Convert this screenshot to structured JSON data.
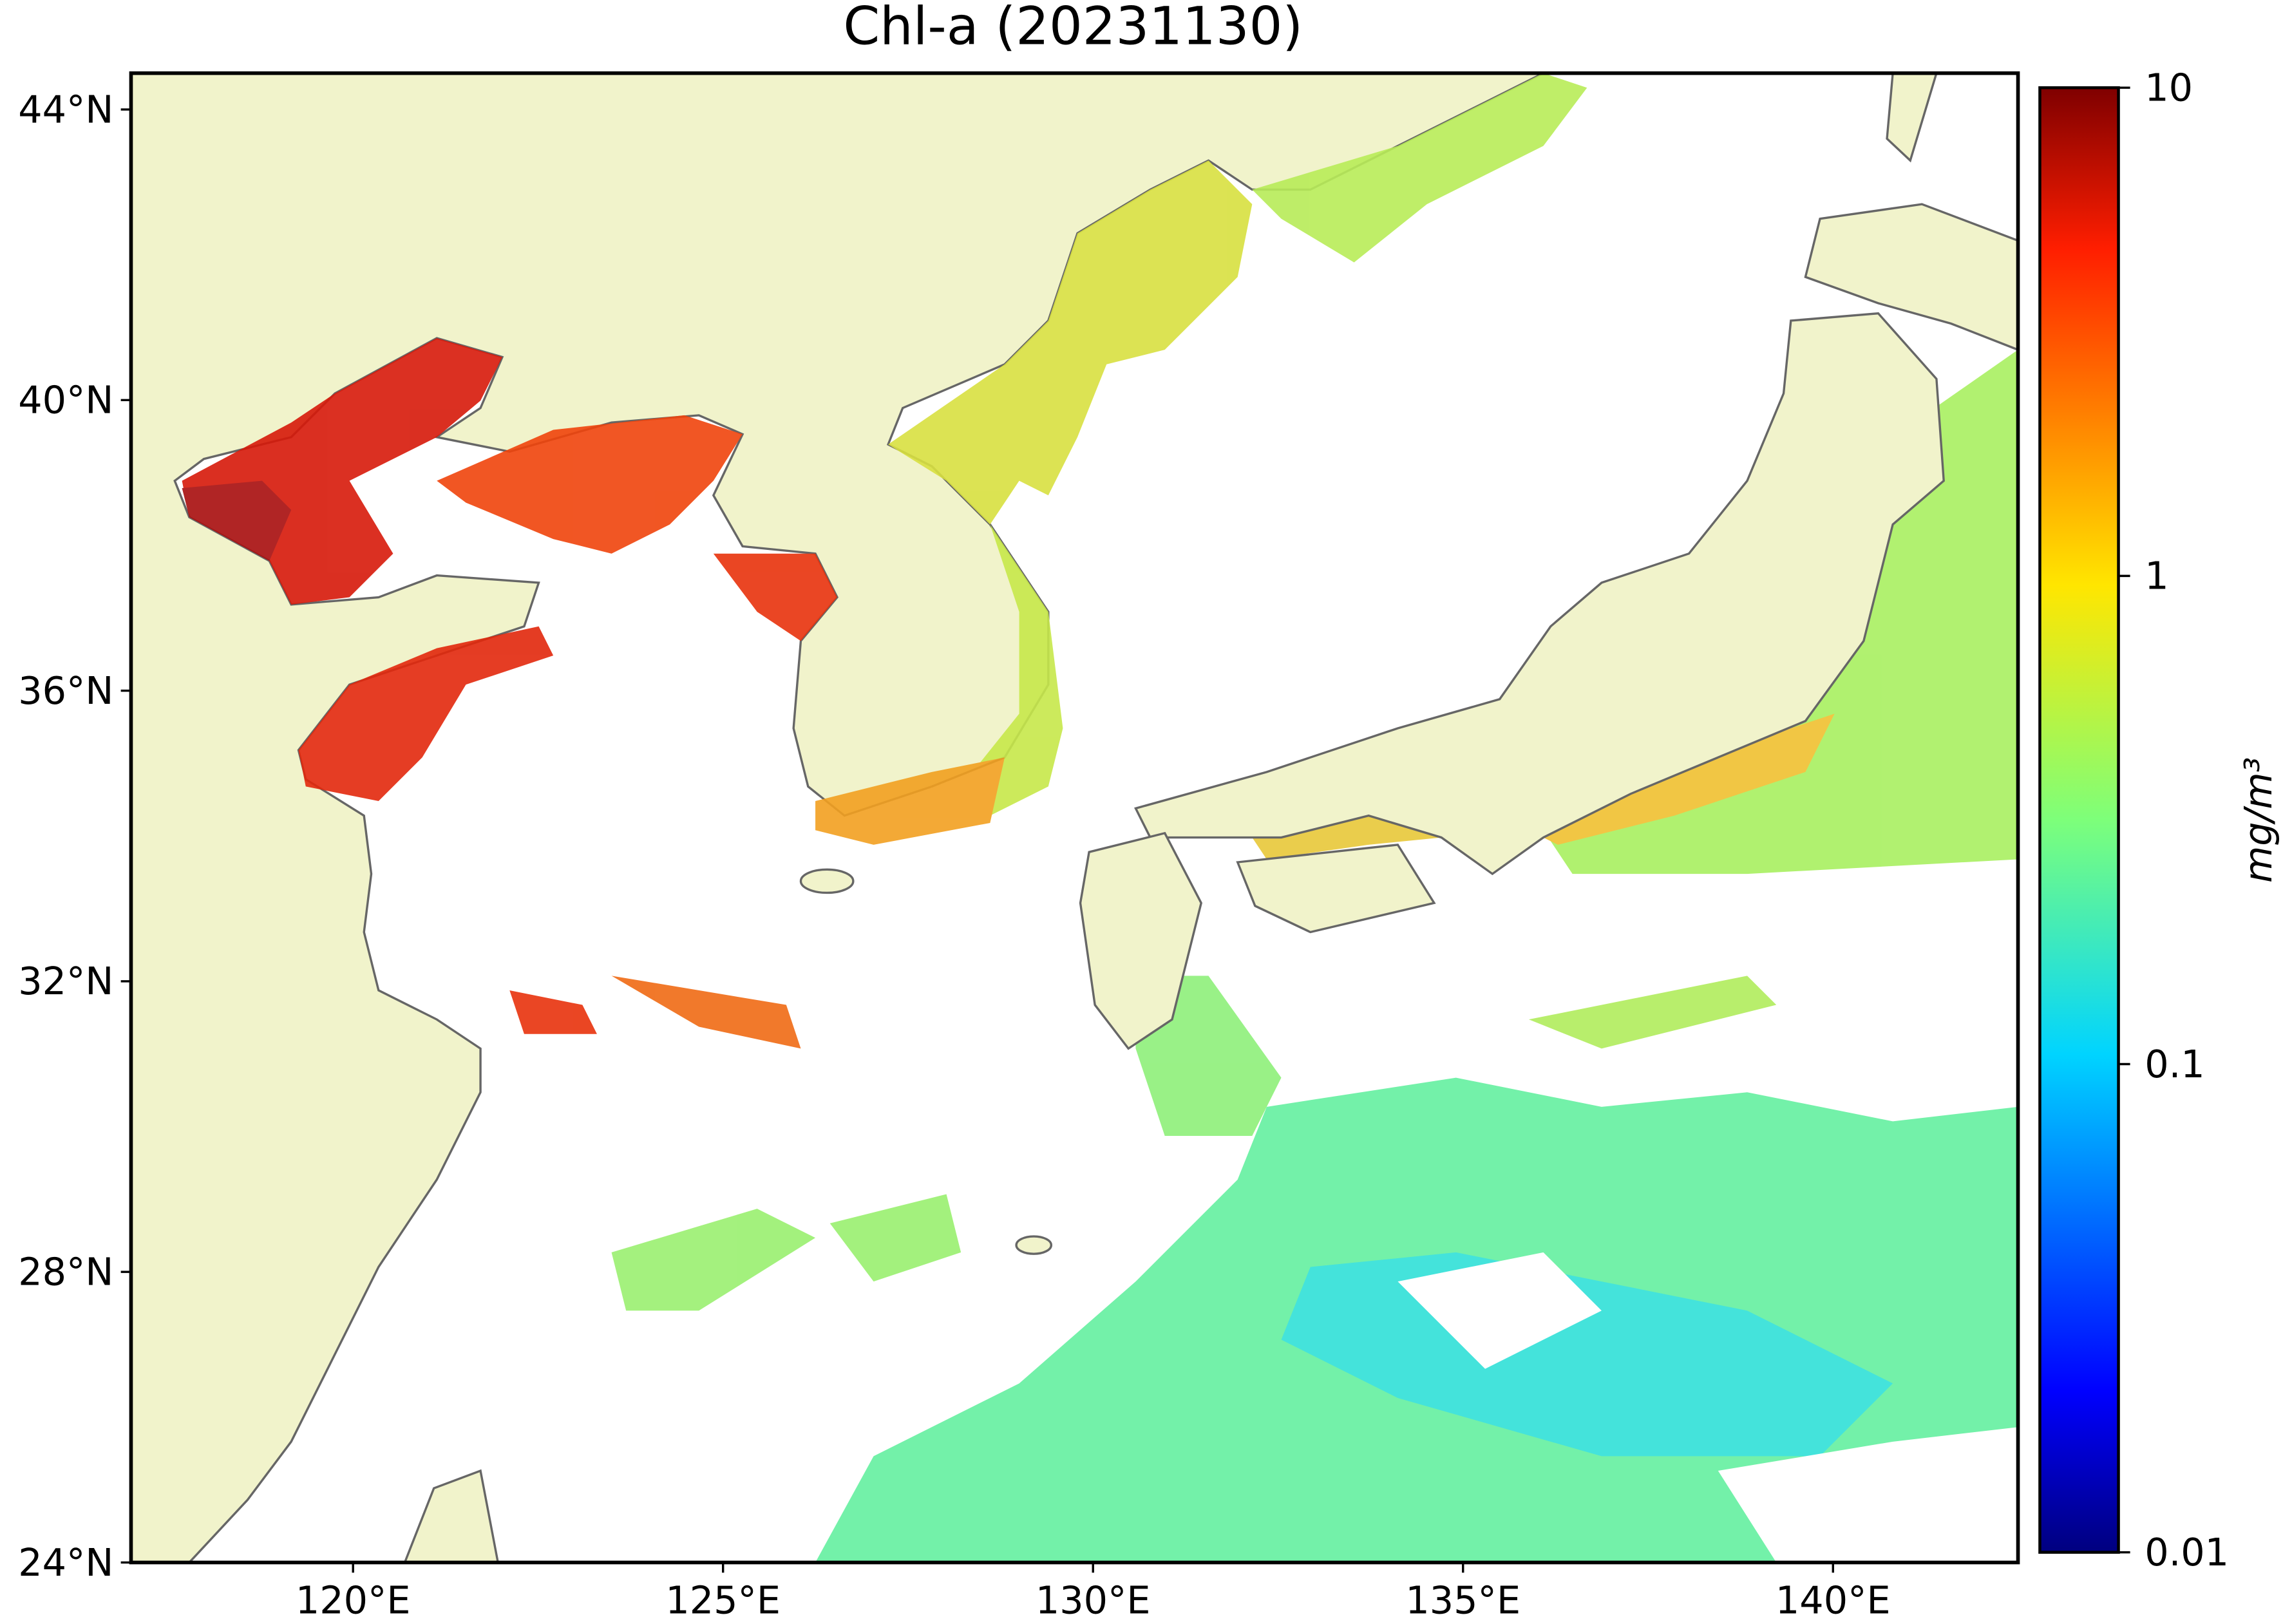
{
  "chart_data": {
    "type": "map",
    "title": "Chl-a (20231130)",
    "xlim": [
      117,
      142.5
    ],
    "ylim": [
      24,
      44.5
    ],
    "xticks": [
      {
        "value": 120,
        "label": "120°E"
      },
      {
        "value": 125,
        "label": "125°E"
      },
      {
        "value": 130,
        "label": "130°E"
      },
      {
        "value": 135,
        "label": "135°E"
      },
      {
        "value": 140,
        "label": "140°E"
      }
    ],
    "yticks": [
      {
        "value": 24,
        "label": "24°N"
      },
      {
        "value": 28,
        "label": "28°N"
      },
      {
        "value": 32,
        "label": "32°N"
      },
      {
        "value": 36,
        "label": "36°N"
      },
      {
        "value": 40,
        "label": "40°N"
      },
      {
        "value": 44,
        "label": "44°N"
      }
    ],
    "colorbar": {
      "label": "mg/m³",
      "log_scale": true,
      "lim": [
        0.01,
        10
      ],
      "ticks": [
        0.01,
        0.1,
        1,
        10
      ]
    }
  }
}
